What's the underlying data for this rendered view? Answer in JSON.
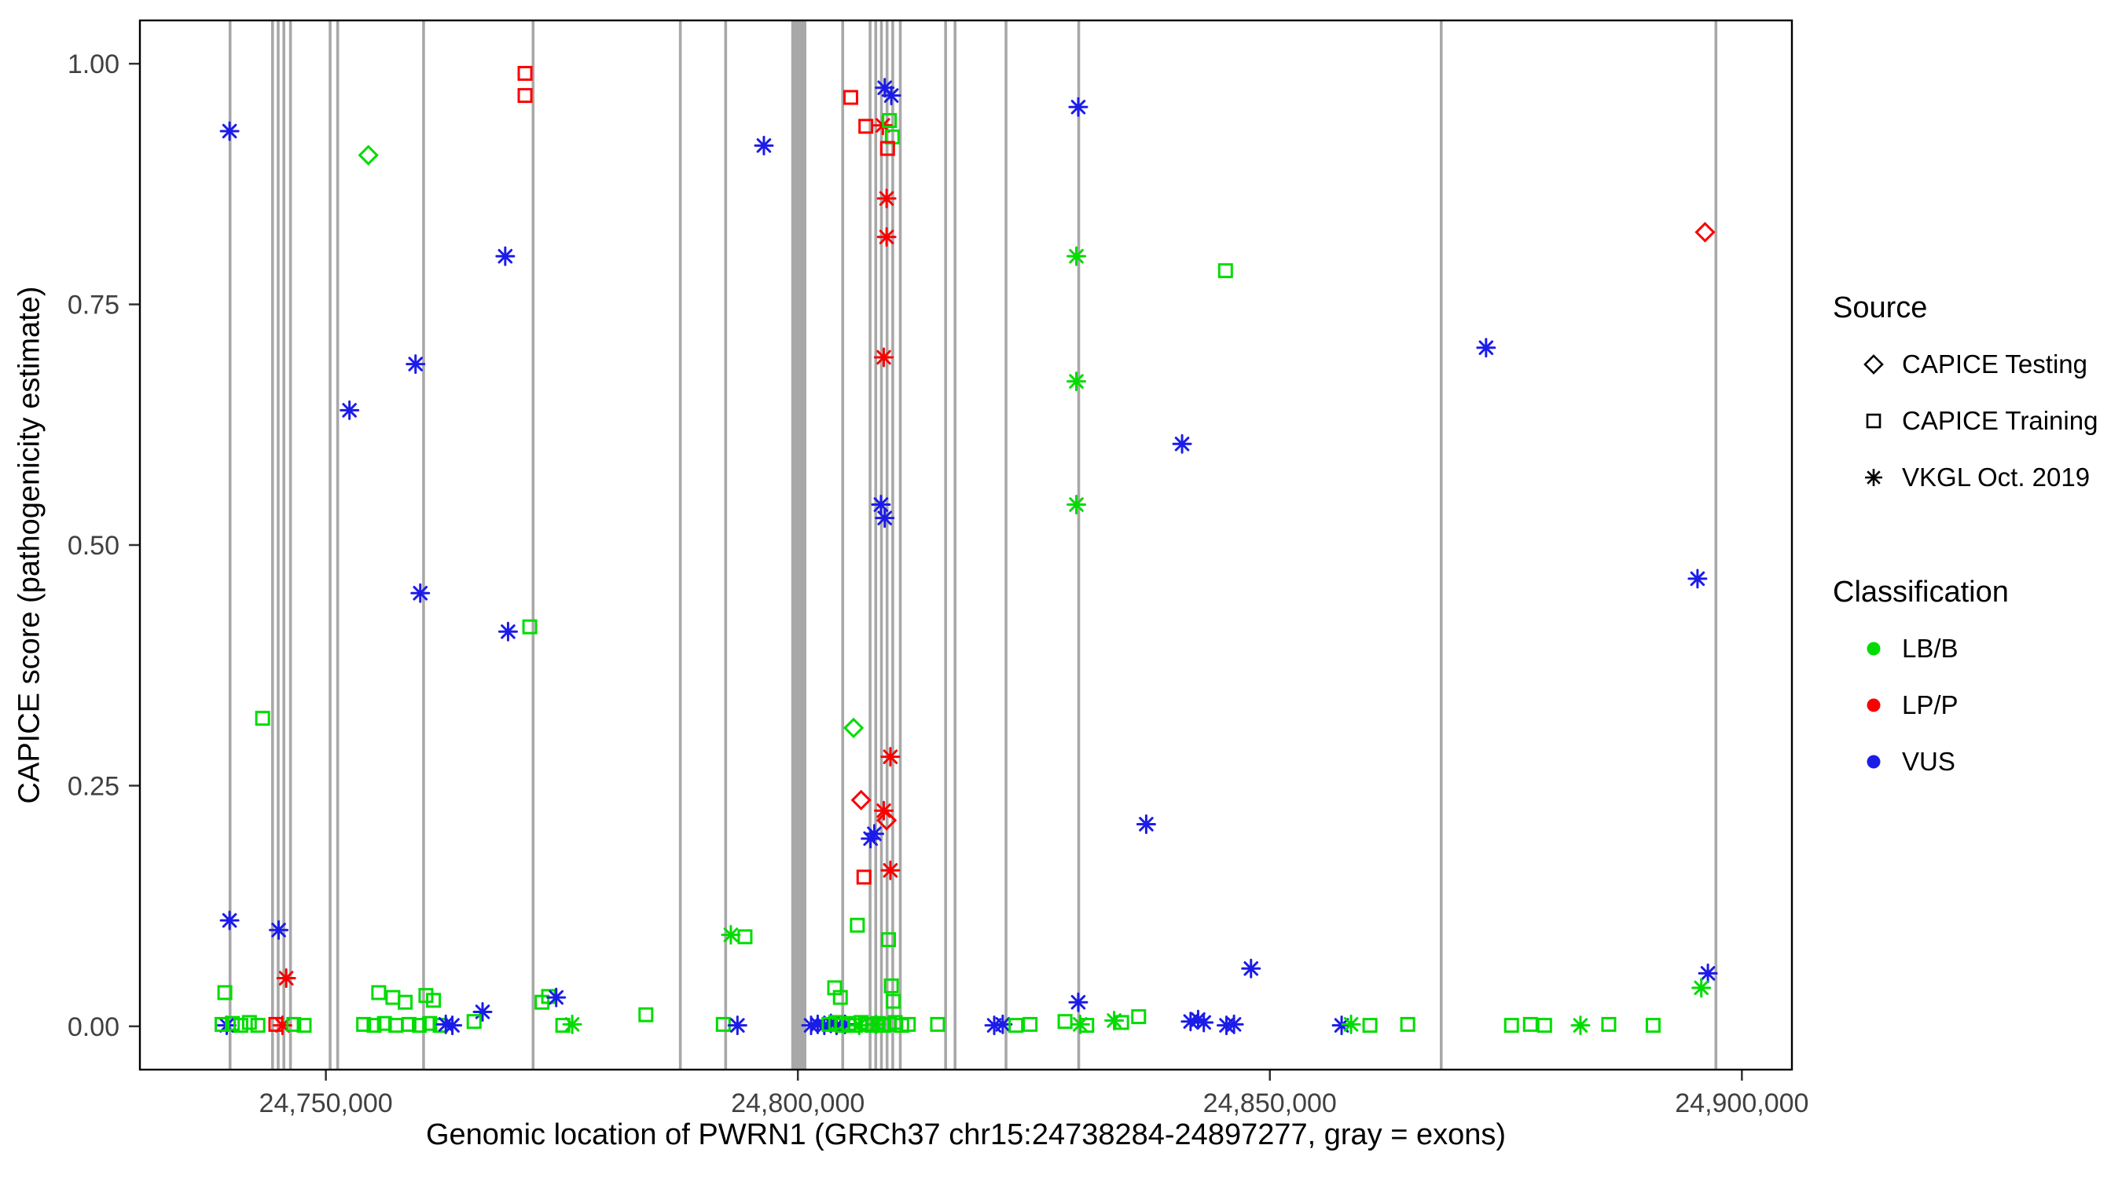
{
  "chart_data": {
    "type": "scatter",
    "title": "",
    "xlabel": "Genomic location of PWRN1 (GRCh37 chr15:24738284-24897277, gray = exons)",
    "ylabel": "CAPICE score (pathogenicity estimate)",
    "xlim": [
      24730300,
      24905300
    ],
    "ylim": [
      -0.045,
      1.045
    ],
    "grid": "off",
    "legend_position": "right",
    "exon_color": "#A8A8A8",
    "panel_border_color": "#000000",
    "tick_label_color": "#404040",
    "x_ticks": [
      {
        "value": 24750000,
        "label": "24,750,000"
      },
      {
        "value": 24800000,
        "label": "24,800,000"
      },
      {
        "value": 24850000,
        "label": "24,850,000"
      },
      {
        "value": 24900000,
        "label": "24,900,000"
      }
    ],
    "y_ticks": [
      {
        "value": 0.0,
        "label": "0.00"
      },
      {
        "value": 0.25,
        "label": "0.25"
      },
      {
        "value": 0.5,
        "label": "0.50"
      },
      {
        "value": 0.75,
        "label": "0.75"
      },
      {
        "value": 1.0,
        "label": "1.00"
      }
    ],
    "source_legend": {
      "title": "Source",
      "items": [
        {
          "code": "D",
          "label": "CAPICE Testing",
          "shape": "diamond"
        },
        {
          "code": "S",
          "label": "CAPICE Training",
          "shape": "square"
        },
        {
          "code": "A",
          "label": "VKGL Oct. 2019",
          "shape": "asterisk"
        }
      ]
    },
    "classification_legend": {
      "title": "Classification",
      "items": [
        {
          "code": "LB",
          "label": "LB/B",
          "color": "#00DC00"
        },
        {
          "code": "LP",
          "label": "LP/P",
          "color": "#FA0000"
        },
        {
          "code": "VUS",
          "label": "VUS",
          "color": "#1C1CE8"
        }
      ]
    },
    "exons": [
      {
        "start": 24739700,
        "end": 24740000
      },
      {
        "start": 24744200,
        "end": 24744500
      },
      {
        "start": 24744800,
        "end": 24745100
      },
      {
        "start": 24745400,
        "end": 24745700
      },
      {
        "start": 24746100,
        "end": 24746400
      },
      {
        "start": 24750300,
        "end": 24750600
      },
      {
        "start": 24751100,
        "end": 24751400
      },
      {
        "start": 24760200,
        "end": 24760500
      },
      {
        "start": 24771800,
        "end": 24772100
      },
      {
        "start": 24787400,
        "end": 24787700
      },
      {
        "start": 24792200,
        "end": 24792500
      },
      {
        "start": 24799300,
        "end": 24800900
      },
      {
        "start": 24804600,
        "end": 24804900
      },
      {
        "start": 24807500,
        "end": 24807800
      },
      {
        "start": 24808100,
        "end": 24808400
      },
      {
        "start": 24808700,
        "end": 24809000
      },
      {
        "start": 24809300,
        "end": 24809600
      },
      {
        "start": 24809900,
        "end": 24810200
      },
      {
        "start": 24810700,
        "end": 24811000
      },
      {
        "start": 24815500,
        "end": 24815800
      },
      {
        "start": 24816500,
        "end": 24816800
      },
      {
        "start": 24821900,
        "end": 24822200
      },
      {
        "start": 24829600,
        "end": 24829900
      },
      {
        "start": 24868000,
        "end": 24868300
      },
      {
        "start": 24897100,
        "end": 24897400
      }
    ],
    "points": [
      {
        "x": 24739800,
        "y": 0.93,
        "s": "A",
        "c": "VUS"
      },
      {
        "x": 24739800,
        "y": 0.11,
        "s": "A",
        "c": "VUS"
      },
      {
        "x": 24743300,
        "y": 0.32,
        "s": "S",
        "c": "LB"
      },
      {
        "x": 24745000,
        "y": 0.1,
        "s": "A",
        "c": "VUS"
      },
      {
        "x": 24745800,
        "y": 0.05,
        "s": "A",
        "c": "LP"
      },
      {
        "x": 24739300,
        "y": 0.035,
        "s": "S",
        "c": "LB"
      },
      {
        "x": 24739500,
        "y": 0.001,
        "s": "A",
        "c": "VUS"
      },
      {
        "x": 24739000,
        "y": 0.002,
        "s": "S",
        "c": "LB"
      },
      {
        "x": 24740100,
        "y": 0.003,
        "s": "S",
        "c": "LB"
      },
      {
        "x": 24741000,
        "y": 0.001,
        "s": "S",
        "c": "LB"
      },
      {
        "x": 24741900,
        "y": 0.004,
        "s": "S",
        "c": "LB"
      },
      {
        "x": 24742800,
        "y": 0.001,
        "s": "S",
        "c": "LB"
      },
      {
        "x": 24744700,
        "y": 0.002,
        "s": "S",
        "c": "LP"
      },
      {
        "x": 24745400,
        "y": 0.001,
        "s": "A",
        "c": "LP"
      },
      {
        "x": 24746600,
        "y": 0.002,
        "s": "S",
        "c": "LB"
      },
      {
        "x": 24747700,
        "y": 0.001,
        "s": "S",
        "c": "LB"
      },
      {
        "x": 24752500,
        "y": 0.64,
        "s": "A",
        "c": "VUS"
      },
      {
        "x": 24754500,
        "y": 0.905,
        "s": "D",
        "c": "LB"
      },
      {
        "x": 24759500,
        "y": 0.688,
        "s": "A",
        "c": "VUS"
      },
      {
        "x": 24760000,
        "y": 0.45,
        "s": "A",
        "c": "VUS"
      },
      {
        "x": 24769000,
        "y": 0.8,
        "s": "A",
        "c": "VUS"
      },
      {
        "x": 24769300,
        "y": 0.41,
        "s": "A",
        "c": "VUS"
      },
      {
        "x": 24771600,
        "y": 0.415,
        "s": "S",
        "c": "LB"
      },
      {
        "x": 24771100,
        "y": 0.99,
        "s": "S",
        "c": "LP"
      },
      {
        "x": 24771100,
        "y": 0.967,
        "s": "S",
        "c": "LP"
      },
      {
        "x": 24766600,
        "y": 0.015,
        "s": "A",
        "c": "VUS"
      },
      {
        "x": 24755600,
        "y": 0.035,
        "s": "S",
        "c": "LB"
      },
      {
        "x": 24757100,
        "y": 0.03,
        "s": "S",
        "c": "LB"
      },
      {
        "x": 24758400,
        "y": 0.025,
        "s": "S",
        "c": "LB"
      },
      {
        "x": 24760600,
        "y": 0.032,
        "s": "S",
        "c": "LB"
      },
      {
        "x": 24761400,
        "y": 0.027,
        "s": "S",
        "c": "LB"
      },
      {
        "x": 24754000,
        "y": 0.002,
        "s": "S",
        "c": "LB"
      },
      {
        "x": 24755100,
        "y": 0.001,
        "s": "S",
        "c": "LB"
      },
      {
        "x": 24756200,
        "y": 0.003,
        "s": "S",
        "c": "LB"
      },
      {
        "x": 24757400,
        "y": 0.001,
        "s": "S",
        "c": "LB"
      },
      {
        "x": 24758800,
        "y": 0.002,
        "s": "S",
        "c": "LB"
      },
      {
        "x": 24759900,
        "y": 0.001,
        "s": "S",
        "c": "LB"
      },
      {
        "x": 24761000,
        "y": 0.003,
        "s": "S",
        "c": "LB"
      },
      {
        "x": 24762100,
        "y": 0.001,
        "s": "S",
        "c": "LB"
      },
      {
        "x": 24762700,
        "y": 0.002,
        "s": "A",
        "c": "VUS"
      },
      {
        "x": 24763400,
        "y": 0.001,
        "s": "A",
        "c": "VUS"
      },
      {
        "x": 24765700,
        "y": 0.005,
        "s": "S",
        "c": "LB"
      },
      {
        "x": 24772900,
        "y": 0.025,
        "s": "S",
        "c": "LB"
      },
      {
        "x": 24773600,
        "y": 0.031,
        "s": "S",
        "c": "LB"
      },
      {
        "x": 24774400,
        "y": 0.03,
        "s": "A",
        "c": "VUS"
      },
      {
        "x": 24775100,
        "y": 0.001,
        "s": "S",
        "c": "LB"
      },
      {
        "x": 24776100,
        "y": 0.002,
        "s": "A",
        "c": "LB"
      },
      {
        "x": 24783900,
        "y": 0.012,
        "s": "S",
        "c": "LB"
      },
      {
        "x": 24792900,
        "y": 0.095,
        "s": "A",
        "c": "LB"
      },
      {
        "x": 24794400,
        "y": 0.093,
        "s": "S",
        "c": "LB"
      },
      {
        "x": 24792100,
        "y": 0.002,
        "s": "S",
        "c": "LB"
      },
      {
        "x": 24793600,
        "y": 0.001,
        "s": "A",
        "c": "VUS"
      },
      {
        "x": 24796400,
        "y": 0.915,
        "s": "A",
        "c": "VUS"
      },
      {
        "x": 24801400,
        "y": 0.001,
        "s": "A",
        "c": "VUS"
      },
      {
        "x": 24802100,
        "y": 0.002,
        "s": "A",
        "c": "VUS"
      },
      {
        "x": 24802800,
        "y": 0.001,
        "s": "A",
        "c": "VUS"
      },
      {
        "x": 24803500,
        "y": 0.003,
        "s": "A",
        "c": "VUS"
      },
      {
        "x": 24804100,
        "y": 0.001,
        "s": "A",
        "c": "VUS"
      },
      {
        "x": 24805000,
        "y": 0.002,
        "s": "A",
        "c": "VUS"
      },
      {
        "x": 24805600,
        "y": 0.965,
        "s": "S",
        "c": "LP"
      },
      {
        "x": 24807200,
        "y": 0.935,
        "s": "S",
        "c": "LP"
      },
      {
        "x": 24809000,
        "y": 0.936,
        "s": "A",
        "c": "LP"
      },
      {
        "x": 24809700,
        "y": 0.941,
        "s": "S",
        "c": "LB"
      },
      {
        "x": 24810000,
        "y": 0.924,
        "s": "S",
        "c": "LB"
      },
      {
        "x": 24809500,
        "y": 0.912,
        "s": "S",
        "c": "LP"
      },
      {
        "x": 24809200,
        "y": 0.975,
        "s": "A",
        "c": "VUS"
      },
      {
        "x": 24809900,
        "y": 0.967,
        "s": "A",
        "c": "VUS"
      },
      {
        "x": 24809400,
        "y": 0.86,
        "s": "A",
        "c": "LP"
      },
      {
        "x": 24809400,
        "y": 0.82,
        "s": "A",
        "c": "LP"
      },
      {
        "x": 24809100,
        "y": 0.695,
        "s": "A",
        "c": "LP"
      },
      {
        "x": 24808800,
        "y": 0.542,
        "s": "A",
        "c": "VUS"
      },
      {
        "x": 24809200,
        "y": 0.528,
        "s": "A",
        "c": "VUS"
      },
      {
        "x": 24809800,
        "y": 0.28,
        "s": "A",
        "c": "LP"
      },
      {
        "x": 24805900,
        "y": 0.31,
        "s": "D",
        "c": "LB"
      },
      {
        "x": 24806700,
        "y": 0.235,
        "s": "D",
        "c": "LP"
      },
      {
        "x": 24809100,
        "y": 0.224,
        "s": "A",
        "c": "LP"
      },
      {
        "x": 24809400,
        "y": 0.214,
        "s": "D",
        "c": "LP"
      },
      {
        "x": 24808100,
        "y": 0.2,
        "s": "A",
        "c": "VUS"
      },
      {
        "x": 24807700,
        "y": 0.195,
        "s": "A",
        "c": "VUS"
      },
      {
        "x": 24809800,
        "y": 0.162,
        "s": "A",
        "c": "LP"
      },
      {
        "x": 24807000,
        "y": 0.155,
        "s": "S",
        "c": "LP"
      },
      {
        "x": 24806300,
        "y": 0.105,
        "s": "S",
        "c": "LB"
      },
      {
        "x": 24809600,
        "y": 0.09,
        "s": "S",
        "c": "LB"
      },
      {
        "x": 24803900,
        "y": 0.04,
        "s": "S",
        "c": "LB"
      },
      {
        "x": 24804500,
        "y": 0.03,
        "s": "S",
        "c": "LB"
      },
      {
        "x": 24809900,
        "y": 0.042,
        "s": "S",
        "c": "LB"
      },
      {
        "x": 24810100,
        "y": 0.026,
        "s": "S",
        "c": "LB"
      },
      {
        "x": 24803300,
        "y": 0.002,
        "s": "S",
        "c": "LB"
      },
      {
        "x": 24804000,
        "y": 0.004,
        "s": "S",
        "c": "LB"
      },
      {
        "x": 24804700,
        "y": 0.001,
        "s": "S",
        "c": "LB"
      },
      {
        "x": 24805400,
        "y": 0.003,
        "s": "S",
        "c": "LB"
      },
      {
        "x": 24806100,
        "y": 0.001,
        "s": "S",
        "c": "LB"
      },
      {
        "x": 24806700,
        "y": 0.004,
        "s": "S",
        "c": "LB"
      },
      {
        "x": 24807300,
        "y": 0.002,
        "s": "S",
        "c": "LB"
      },
      {
        "x": 24807900,
        "y": 0.001,
        "s": "S",
        "c": "LB"
      },
      {
        "x": 24808500,
        "y": 0.003,
        "s": "S",
        "c": "LB"
      },
      {
        "x": 24809100,
        "y": 0.001,
        "s": "S",
        "c": "LB"
      },
      {
        "x": 24809700,
        "y": 0.002,
        "s": "S",
        "c": "LB"
      },
      {
        "x": 24810300,
        "y": 0.004,
        "s": "S",
        "c": "LB"
      },
      {
        "x": 24811000,
        "y": 0.001,
        "s": "S",
        "c": "LB"
      },
      {
        "x": 24811700,
        "y": 0.002,
        "s": "S",
        "c": "LB"
      },
      {
        "x": 24806500,
        "y": 0.001,
        "s": "A",
        "c": "LB"
      },
      {
        "x": 24808300,
        "y": 0.002,
        "s": "A",
        "c": "LB"
      },
      {
        "x": 24814800,
        "y": 0.002,
        "s": "S",
        "c": "LB"
      },
      {
        "x": 24820800,
        "y": 0.001,
        "s": "A",
        "c": "VUS"
      },
      {
        "x": 24821700,
        "y": 0.002,
        "s": "A",
        "c": "VUS"
      },
      {
        "x": 24823100,
        "y": 0.001,
        "s": "S",
        "c": "LB"
      },
      {
        "x": 24824600,
        "y": 0.002,
        "s": "S",
        "c": "LB"
      },
      {
        "x": 24829700,
        "y": 0.955,
        "s": "A",
        "c": "VUS"
      },
      {
        "x": 24829500,
        "y": 0.8,
        "s": "A",
        "c": "LB"
      },
      {
        "x": 24829500,
        "y": 0.67,
        "s": "A",
        "c": "LB"
      },
      {
        "x": 24829500,
        "y": 0.542,
        "s": "A",
        "c": "LB"
      },
      {
        "x": 24829700,
        "y": 0.025,
        "s": "A",
        "c": "VUS"
      },
      {
        "x": 24829900,
        "y": 0.002,
        "s": "A",
        "c": "LB"
      },
      {
        "x": 24828300,
        "y": 0.005,
        "s": "S",
        "c": "LB"
      },
      {
        "x": 24830600,
        "y": 0.001,
        "s": "S",
        "c": "LB"
      },
      {
        "x": 24833500,
        "y": 0.006,
        "s": "A",
        "c": "LB"
      },
      {
        "x": 24834300,
        "y": 0.004,
        "s": "S",
        "c": "LB"
      },
      {
        "x": 24836100,
        "y": 0.01,
        "s": "S",
        "c": "LB"
      },
      {
        "x": 24836900,
        "y": 0.21,
        "s": "A",
        "c": "VUS"
      },
      {
        "x": 24840700,
        "y": 0.605,
        "s": "A",
        "c": "VUS"
      },
      {
        "x": 24841600,
        "y": 0.005,
        "s": "A",
        "c": "VUS"
      },
      {
        "x": 24842400,
        "y": 0.007,
        "s": "A",
        "c": "VUS"
      },
      {
        "x": 24843000,
        "y": 0.004,
        "s": "A",
        "c": "VUS"
      },
      {
        "x": 24845300,
        "y": 0.785,
        "s": "S",
        "c": "LB"
      },
      {
        "x": 24845400,
        "y": 0.001,
        "s": "A",
        "c": "VUS"
      },
      {
        "x": 24846200,
        "y": 0.002,
        "s": "A",
        "c": "VUS"
      },
      {
        "x": 24848000,
        "y": 0.06,
        "s": "A",
        "c": "VUS"
      },
      {
        "x": 24857600,
        "y": 0.001,
        "s": "A",
        "c": "VUS"
      },
      {
        "x": 24858600,
        "y": 0.002,
        "s": "A",
        "c": "LB"
      },
      {
        "x": 24860600,
        "y": 0.001,
        "s": "S",
        "c": "LB"
      },
      {
        "x": 24864600,
        "y": 0.002,
        "s": "S",
        "c": "LB"
      },
      {
        "x": 24872900,
        "y": 0.705,
        "s": "A",
        "c": "VUS"
      },
      {
        "x": 24875600,
        "y": 0.001,
        "s": "S",
        "c": "LB"
      },
      {
        "x": 24877600,
        "y": 0.002,
        "s": "S",
        "c": "LB"
      },
      {
        "x": 24879100,
        "y": 0.001,
        "s": "S",
        "c": "LB"
      },
      {
        "x": 24882900,
        "y": 0.001,
        "s": "A",
        "c": "LB"
      },
      {
        "x": 24885900,
        "y": 0.002,
        "s": "S",
        "c": "LB"
      },
      {
        "x": 24890600,
        "y": 0.001,
        "s": "S",
        "c": "LB"
      },
      {
        "x": 24896100,
        "y": 0.825,
        "s": "D",
        "c": "LP"
      },
      {
        "x": 24895300,
        "y": 0.465,
        "s": "A",
        "c": "VUS"
      },
      {
        "x": 24896400,
        "y": 0.055,
        "s": "A",
        "c": "VUS"
      },
      {
        "x": 24895700,
        "y": 0.04,
        "s": "A",
        "c": "LB"
      }
    ],
    "source_codes": {
      "D": "CAPICE Testing",
      "S": "CAPICE Training",
      "A": "VKGL Oct. 2019"
    },
    "class_codes": {
      "LB": "LB/B",
      "LP": "LP/P",
      "VUS": "VUS"
    }
  }
}
